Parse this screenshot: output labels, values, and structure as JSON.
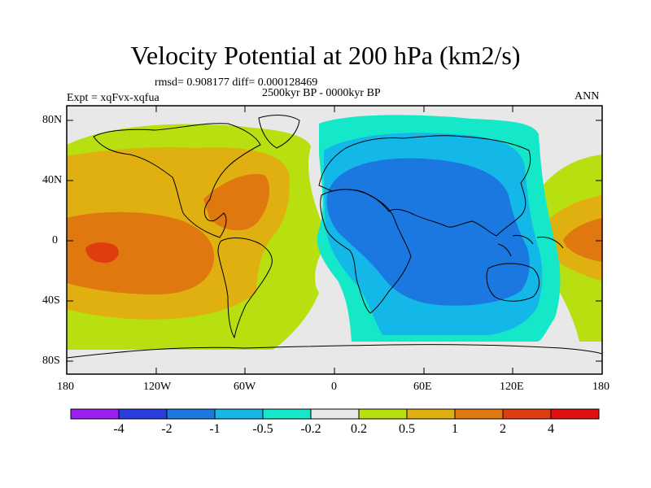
{
  "title": "Velocity Potential at 200 hPa (km2/s)",
  "stats": "rmsd= 0.908177 diff= 0.000128469",
  "left_label": "Expt = xqFvx-xqfua",
  "center_label": "2500kyr BP - 0000kyr BP",
  "right_label": "ANN",
  "y_ticks": [
    "80N",
    "40N",
    "0",
    "40S",
    "80S"
  ],
  "x_ticks": [
    "180",
    "120W",
    "60W",
    "0",
    "60E",
    "120E",
    "180"
  ],
  "colorbar": {
    "labels": [
      "-4",
      "-2",
      "-1",
      "-0.5",
      "-0.2",
      "0.2",
      "0.5",
      "1",
      "2",
      "4"
    ],
    "colors": [
      "#9a1ff0",
      "#2a3ee0",
      "#1a78e0",
      "#14b8e8",
      "#14e8c8",
      "#e8e8e8",
      "#b8e010",
      "#e0b010",
      "#e07810",
      "#e03c10",
      "#e01010"
    ]
  },
  "fill_colors": {
    "neg_strong": "#1a78e0",
    "neg_mid": "#14b8e8",
    "neg_weak": "#14e8c8",
    "neutral": "#e8e8e8",
    "pos_weak": "#b8e010",
    "pos_mid": "#e0b010",
    "pos_strong": "#e07810",
    "pos_max": "#e03c10"
  }
}
